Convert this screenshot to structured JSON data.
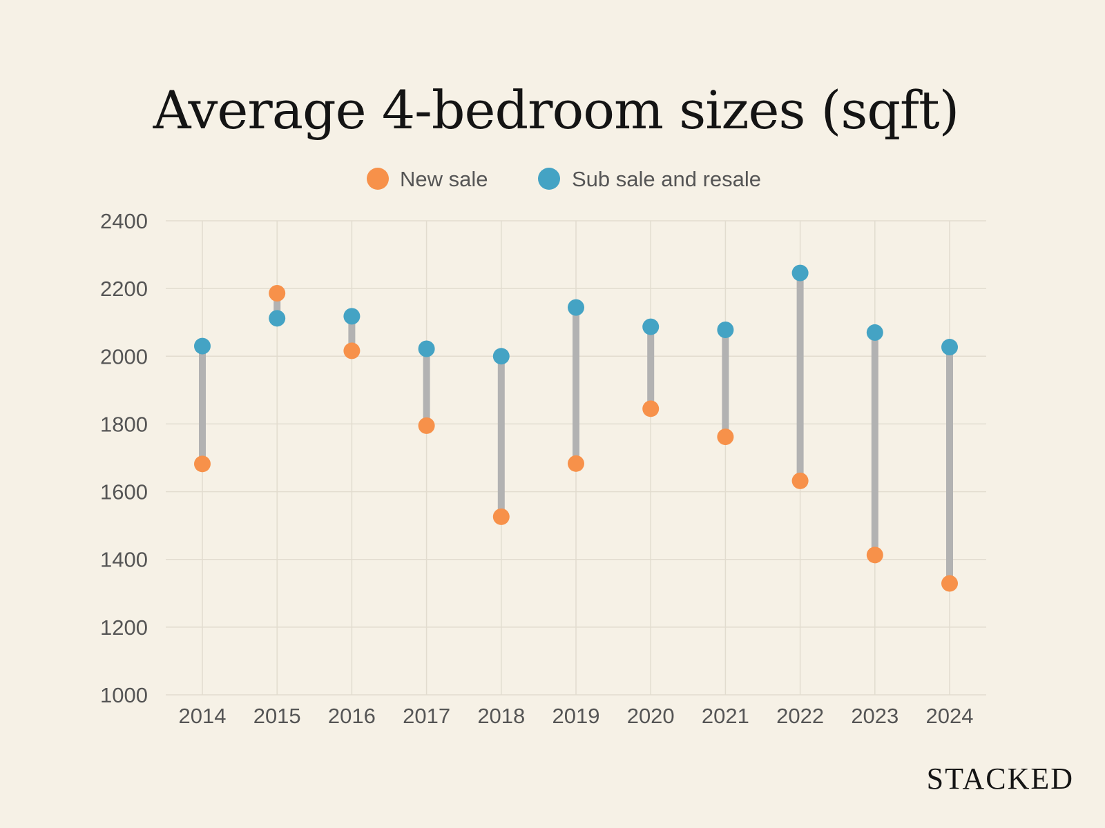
{
  "chart_data": {
    "type": "dumbbell",
    "title": "Average 4-bedroom sizes (sqft)",
    "xlabel": "",
    "ylabel": "",
    "ylim": [
      1000,
      2400
    ],
    "yticks": [
      "1000",
      "1200",
      "1400",
      "1600",
      "1800",
      "2000",
      "2200",
      "2400"
    ],
    "grid": true,
    "legend_position": "top-center",
    "categories": [
      "2014",
      "2015",
      "2016",
      "2017",
      "2018",
      "2019",
      "2020",
      "2021",
      "2022",
      "2023",
      "2024"
    ],
    "series": [
      {
        "name": "New sale",
        "color": "#f7914a",
        "values": [
          1682,
          2186,
          2016,
          1795,
          1526,
          1683,
          1845,
          1762,
          1632,
          1413,
          1329
        ]
      },
      {
        "name": "Sub sale and resale",
        "color": "#44a3c4",
        "values": [
          2030,
          2112,
          2118,
          2022,
          2000,
          2144,
          2087,
          2078,
          2246,
          2070,
          2027
        ]
      }
    ]
  },
  "colors": {
    "background": "#f6f1e6",
    "connector": "#b2b2b2",
    "grid": "#e2dccf",
    "title": "#141414",
    "tick": "#555555"
  },
  "brand": {
    "logo_text": "STACKED"
  }
}
